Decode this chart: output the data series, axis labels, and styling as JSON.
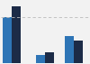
{
  "series_2015": [
    430,
    80,
    250
  ],
  "series_2017": [
    530,
    100,
    210
  ],
  "color_2015": "#2e75b6",
  "color_2017": "#1c2b47",
  "bar_width": 0.4,
  "ylim": [
    0,
    580
  ],
  "xlim": [
    -0.5,
    3.5
  ],
  "x_positions": [
    0,
    1.5,
    2.8
  ],
  "background_color": "#f2f2f2",
  "grid_color": "#bbbbbb",
  "dashed_line_y": 430
}
